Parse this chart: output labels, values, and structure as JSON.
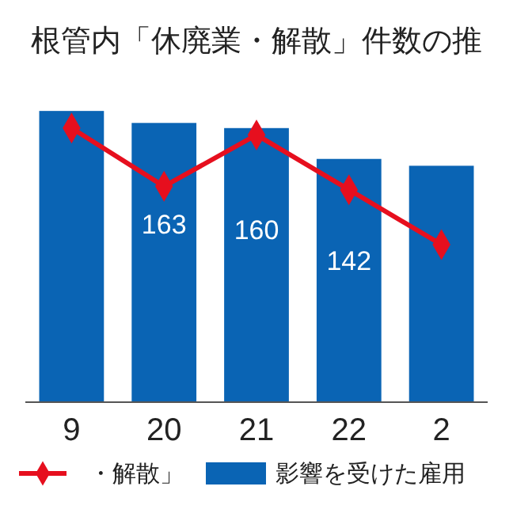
{
  "chart_data": {
    "type": "bar",
    "title": "根管内「休廃業・解散」件数の推",
    "categories": [
      "9",
      "20",
      "21",
      "22",
      "2"
    ],
    "series": [
      {
        "name": "影響を受けた雇用",
        "color": "#0a64b4",
        "values": [
          170,
          163,
          160,
          142,
          138
        ],
        "value_labels": [
          null,
          "163",
          "160",
          "142",
          null
        ]
      },
      {
        "name": "・解散」",
        "type": "line",
        "color": "#e60f1e",
        "marker": "diamond",
        "values": [
          160,
          126,
          156,
          124,
          92
        ]
      }
    ],
    "legend": "bottom"
  }
}
